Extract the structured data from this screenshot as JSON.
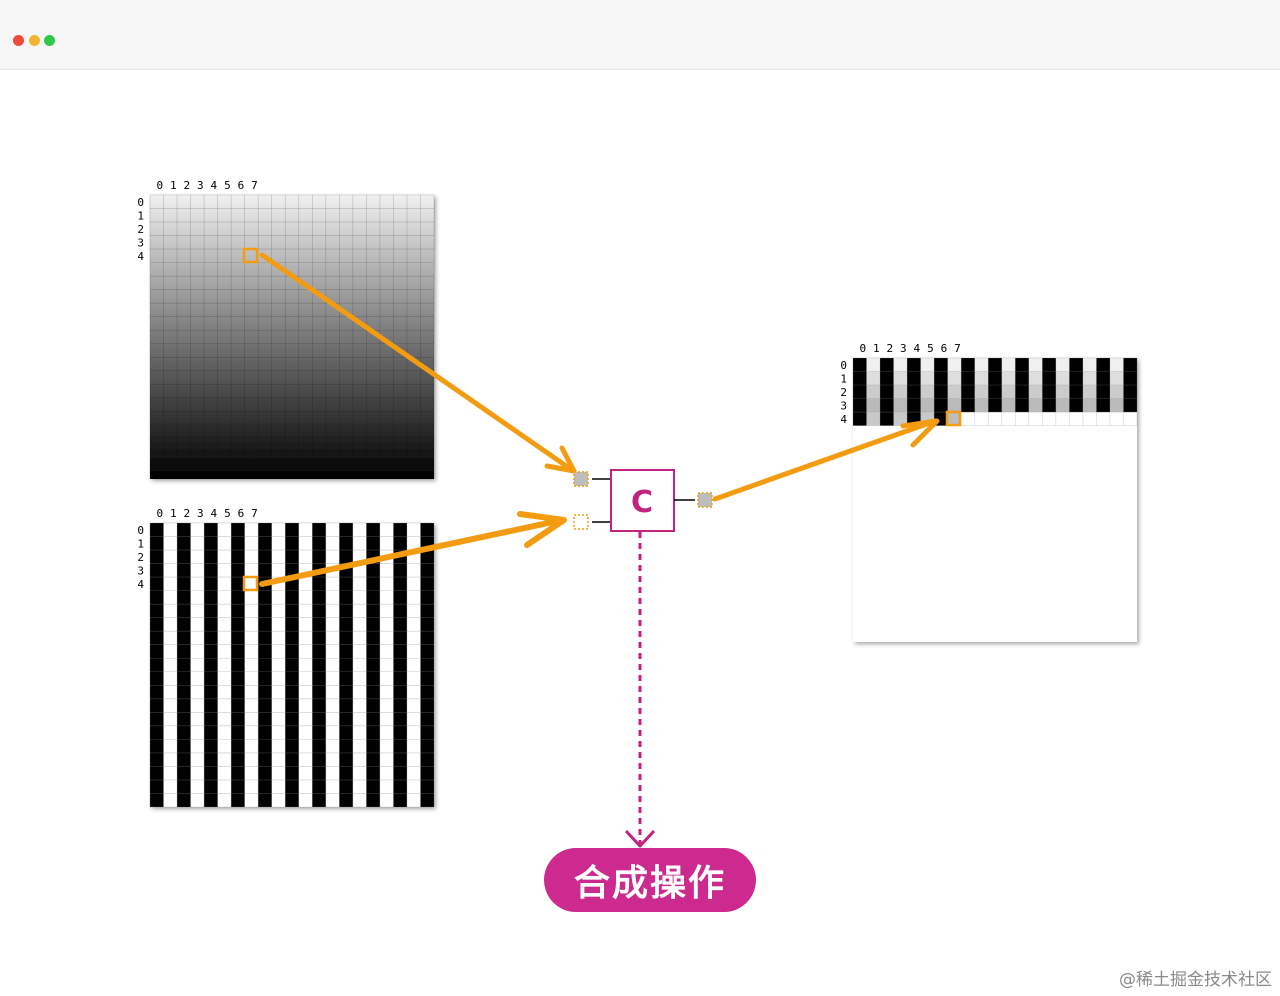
{
  "window": {
    "controls": [
      {
        "name": "close-dot",
        "color": "#ee4b3b"
      },
      {
        "name": "minimize-dot",
        "color": "#f2b52f"
      },
      {
        "name": "maximize-dot",
        "color": "#2fc94a"
      }
    ]
  },
  "diagram": {
    "column_labels": [
      "0",
      "1",
      "2",
      "3",
      "4",
      "5",
      "6",
      "7"
    ],
    "row_labels": [
      "0",
      "1",
      "2",
      "3",
      "4"
    ],
    "compositor_label": "C",
    "operation_label": "合成操作",
    "watermark": "@稀土掘金技术社区",
    "colors": {
      "arrow": "#f39c12",
      "compositor": "#c2237f",
      "pill": "#cc2a8e",
      "pixel_marker": "#f39c12"
    },
    "grid": {
      "columns": 21,
      "rows": 21
    },
    "output_progress_rows": 4
  }
}
